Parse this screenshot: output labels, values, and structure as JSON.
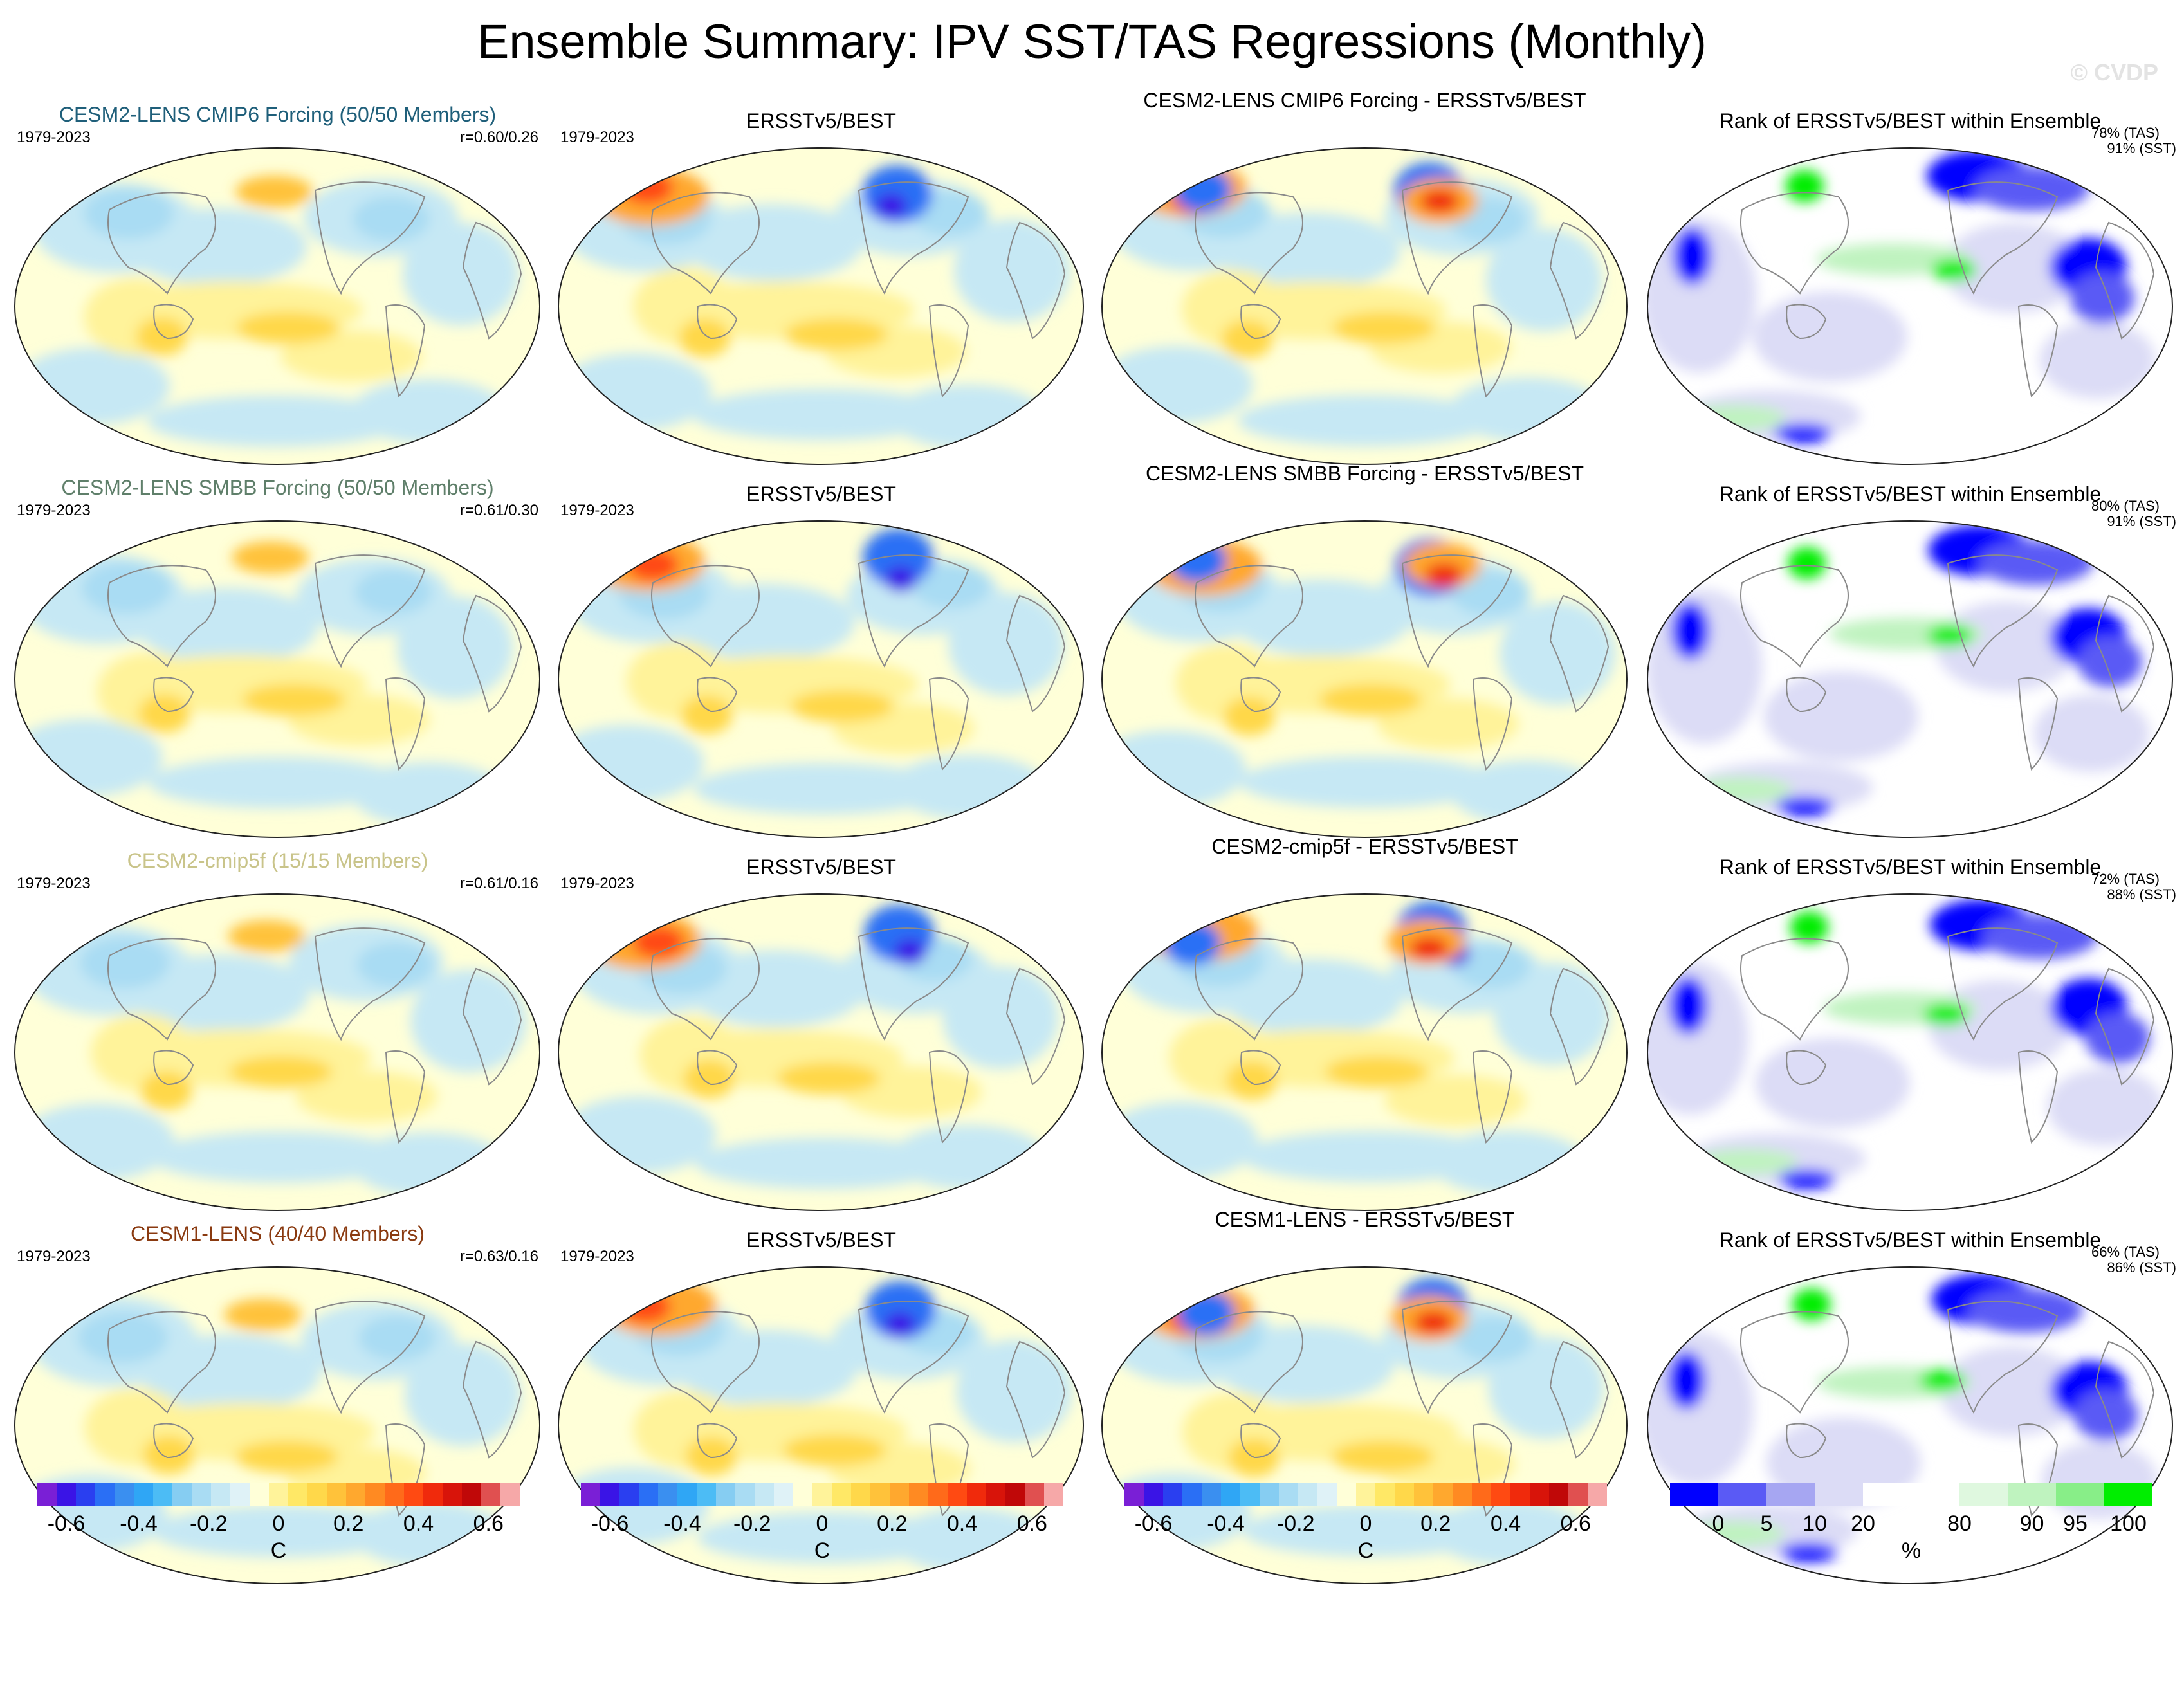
{
  "title": "Ensemble Summary: IPV SST/TAS Regressions (Monthly)",
  "watermark": "© CVDP",
  "rows": [
    {
      "ensemble": {
        "title": "CESM2-LENS CMIP6 Forcing (50/50 Members)",
        "color": "#1f5f7a",
        "years": "1979-2023",
        "r": "r=0.60/0.26"
      },
      "obs": {
        "title": "ERSSTv5/BEST",
        "years": "1979-2023"
      },
      "diff": {
        "title": "CESM2-LENS CMIP6 Forcing - ERSSTv5/BEST"
      },
      "rank": {
        "title": "Rank of ERSSTv5/BEST within Ensemble",
        "tas": "78% (TAS)",
        "sst": "91% (SST)"
      }
    },
    {
      "ensemble": {
        "title": "CESM2-LENS SMBB Forcing (50/50 Members)",
        "color": "#5f7f6a",
        "years": "1979-2023",
        "r": "r=0.61/0.30"
      },
      "obs": {
        "title": "ERSSTv5/BEST",
        "years": "1979-2023"
      },
      "diff": {
        "title": "CESM2-LENS SMBB Forcing - ERSSTv5/BEST"
      },
      "rank": {
        "title": "Rank of ERSSTv5/BEST within Ensemble",
        "tas": "80% (TAS)",
        "sst": "91% (SST)"
      }
    },
    {
      "ensemble": {
        "title": "CESM2-cmip5f (15/15 Members)",
        "color": "#c9c48a",
        "years": "1979-2023",
        "r": "r=0.61/0.16"
      },
      "obs": {
        "title": "ERSSTv5/BEST",
        "years": "1979-2023"
      },
      "diff": {
        "title": "CESM2-cmip5f - ERSSTv5/BEST"
      },
      "rank": {
        "title": "Rank of ERSSTv5/BEST within Ensemble",
        "tas": "72% (TAS)",
        "sst": "88% (SST)"
      }
    },
    {
      "ensemble": {
        "title": "CESM1-LENS (40/40 Members)",
        "color": "#8a3a10",
        "years": "1979-2023",
        "r": "r=0.63/0.16"
      },
      "obs": {
        "title": "ERSSTv5/BEST",
        "years": "1979-2023"
      },
      "diff": {
        "title": "CESM1-LENS - ERSSTv5/BEST"
      },
      "rank": {
        "title": "Rank of ERSSTv5/BEST within Ensemble",
        "tas": "66% (TAS)",
        "sst": "86% (SST)"
      }
    }
  ],
  "colorbar_regression": {
    "ticks": [
      "-0.6",
      "-0.4",
      "-0.2",
      "0",
      "0.2",
      "0.4",
      "0.6"
    ],
    "unit": "C",
    "colors": [
      "#7a1fd6",
      "#3a14e6",
      "#2a3ff0",
      "#2a6ff5",
      "#3a8ff0",
      "#2fa6f5",
      "#4cbcf5",
      "#86cdf2",
      "#a9dcf3",
      "#c6e8f4",
      "#dff2f7",
      "#ffffd8",
      "#fff39a",
      "#ffe866",
      "#ffd84a",
      "#ffc23a",
      "#ffa82e",
      "#ff8a22",
      "#ff6a1a",
      "#ff4a12",
      "#f02a0c",
      "#d8140a",
      "#c00808",
      "#e05050",
      "#f6a8a8"
    ]
  },
  "colorbar_rank": {
    "ticks": [
      "0",
      "5",
      "10",
      "20",
      "80",
      "90",
      "95",
      "100"
    ],
    "unit": "%",
    "colors": [
      "#0000ff",
      "#5a5af5",
      "#a6a6f2",
      "#dcdcf6",
      "#ffffff",
      "#ffffff",
      "#dff8df",
      "#bff3bf",
      "#88ee88",
      "#00ee00"
    ]
  }
}
